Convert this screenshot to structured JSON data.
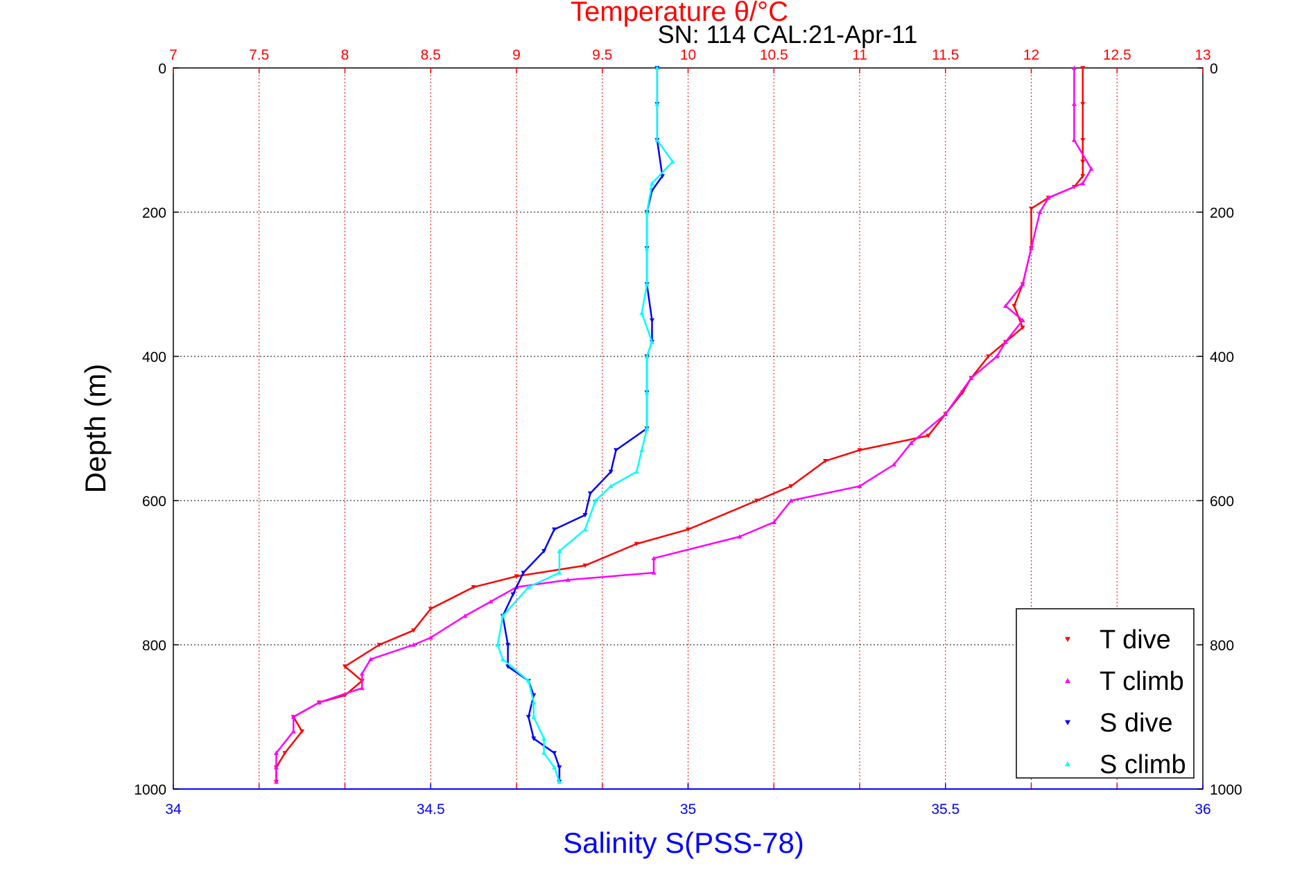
{
  "chart_data": {
    "type": "scatter",
    "title": "Temperature θ/°C",
    "subtitle": "SN: 114  CAL:21-Apr-11",
    "xlabel_bottom": "Salinity S(PSS-78)",
    "ylabel": "Depth (m)",
    "x_top": {
      "label": "Temperature θ/°C",
      "lim": [
        7,
        13
      ],
      "ticks": [
        "7",
        "7.5",
        "8",
        "8.5",
        "9",
        "9.5",
        "10",
        "10.5",
        "11",
        "11.5",
        "12",
        "12.5",
        "13"
      ]
    },
    "x_bottom": {
      "label": "Salinity S(PSS-78)",
      "lim": [
        34,
        36
      ],
      "ticks": [
        "34",
        "34.5",
        "35",
        "35.5",
        "36"
      ]
    },
    "y": {
      "lim": [
        0,
        1000
      ],
      "reversed": true,
      "ticks": [
        "0",
        "200",
        "400",
        "600",
        "800",
        "1000"
      ]
    },
    "grid": true,
    "legend_position": "bottom-right",
    "colors": {
      "T_dive": "#ff0000",
      "T_climb": "#ff00ff",
      "S_dive": "#0000ff",
      "S_climb": "#00ffff",
      "top_axis": "#ff0000",
      "bottom_axis": "#0000ff"
    },
    "series": [
      {
        "name": "T dive",
        "axis": "temperature",
        "marker": "triangle-down",
        "color": "#ff0000",
        "points": [
          [
            12.3,
            0
          ],
          [
            12.3,
            50
          ],
          [
            12.3,
            100
          ],
          [
            12.3,
            130
          ],
          [
            12.3,
            150
          ],
          [
            12.25,
            165
          ],
          [
            12.1,
            180
          ],
          [
            12.0,
            195
          ],
          [
            12.0,
            250
          ],
          [
            11.95,
            300
          ],
          [
            11.9,
            330
          ],
          [
            11.95,
            360
          ],
          [
            11.85,
            380
          ],
          [
            11.75,
            400
          ],
          [
            11.65,
            430
          ],
          [
            11.6,
            450
          ],
          [
            11.5,
            480
          ],
          [
            11.4,
            510
          ],
          [
            11.0,
            530
          ],
          [
            10.8,
            545
          ],
          [
            10.6,
            580
          ],
          [
            10.4,
            600
          ],
          [
            10.0,
            640
          ],
          [
            9.7,
            660
          ],
          [
            9.4,
            690
          ],
          [
            9.0,
            705
          ],
          [
            8.75,
            720
          ],
          [
            8.5,
            750
          ],
          [
            8.4,
            780
          ],
          [
            8.2,
            800
          ],
          [
            8.0,
            830
          ],
          [
            8.1,
            850
          ],
          [
            8.0,
            870
          ],
          [
            7.85,
            880
          ],
          [
            7.7,
            900
          ],
          [
            7.75,
            920
          ],
          [
            7.65,
            950
          ],
          [
            7.6,
            970
          ],
          [
            7.6,
            990
          ]
        ]
      },
      {
        "name": "T climb",
        "axis": "temperature",
        "marker": "triangle-up",
        "color": "#ff00ff",
        "points": [
          [
            12.25,
            0
          ],
          [
            12.25,
            50
          ],
          [
            12.25,
            100
          ],
          [
            12.35,
            140
          ],
          [
            12.3,
            160
          ],
          [
            12.1,
            180
          ],
          [
            12.05,
            200
          ],
          [
            12.0,
            250
          ],
          [
            11.95,
            300
          ],
          [
            11.85,
            330
          ],
          [
            11.95,
            350
          ],
          [
            11.85,
            380
          ],
          [
            11.8,
            400
          ],
          [
            11.65,
            430
          ],
          [
            11.5,
            480
          ],
          [
            11.3,
            520
          ],
          [
            11.2,
            550
          ],
          [
            11.0,
            580
          ],
          [
            10.6,
            600
          ],
          [
            10.5,
            630
          ],
          [
            10.3,
            650
          ],
          [
            9.8,
            680
          ],
          [
            9.8,
            700
          ],
          [
            9.3,
            710
          ],
          [
            9.0,
            720
          ],
          [
            8.85,
            740
          ],
          [
            8.7,
            760
          ],
          [
            8.5,
            790
          ],
          [
            8.4,
            800
          ],
          [
            8.15,
            820
          ],
          [
            8.1,
            840
          ],
          [
            8.1,
            860
          ],
          [
            7.85,
            880
          ],
          [
            7.7,
            900
          ],
          [
            7.7,
            920
          ],
          [
            7.6,
            950
          ],
          [
            7.6,
            970
          ],
          [
            7.6,
            990
          ]
        ]
      },
      {
        "name": "S dive",
        "axis": "salinity",
        "marker": "triangle-down",
        "color": "#0000ff",
        "points": [
          [
            34.94,
            0
          ],
          [
            34.94,
            50
          ],
          [
            34.94,
            100
          ],
          [
            34.95,
            150
          ],
          [
            34.93,
            170
          ],
          [
            34.92,
            200
          ],
          [
            34.92,
            250
          ],
          [
            34.92,
            300
          ],
          [
            34.93,
            350
          ],
          [
            34.93,
            380
          ],
          [
            34.92,
            400
          ],
          [
            34.92,
            450
          ],
          [
            34.92,
            500
          ],
          [
            34.86,
            530
          ],
          [
            34.85,
            560
          ],
          [
            34.81,
            590
          ],
          [
            34.8,
            620
          ],
          [
            34.74,
            640
          ],
          [
            34.72,
            670
          ],
          [
            34.68,
            700
          ],
          [
            34.66,
            730
          ],
          [
            34.64,
            760
          ],
          [
            34.65,
            800
          ],
          [
            34.65,
            830
          ],
          [
            34.69,
            850
          ],
          [
            34.7,
            870
          ],
          [
            34.69,
            900
          ],
          [
            34.7,
            930
          ],
          [
            34.74,
            950
          ],
          [
            34.75,
            970
          ],
          [
            34.75,
            990
          ]
        ]
      },
      {
        "name": "S climb",
        "axis": "salinity",
        "marker": "triangle-up",
        "color": "#00ffff",
        "points": [
          [
            34.94,
            0
          ],
          [
            34.94,
            50
          ],
          [
            34.94,
            100
          ],
          [
            34.97,
            130
          ],
          [
            34.93,
            160
          ],
          [
            34.92,
            200
          ],
          [
            34.92,
            250
          ],
          [
            34.92,
            300
          ],
          [
            34.91,
            340
          ],
          [
            34.93,
            380
          ],
          [
            34.92,
            400
          ],
          [
            34.92,
            450
          ],
          [
            34.92,
            500
          ],
          [
            34.91,
            530
          ],
          [
            34.9,
            560
          ],
          [
            34.85,
            580
          ],
          [
            34.82,
            600
          ],
          [
            34.8,
            640
          ],
          [
            34.75,
            670
          ],
          [
            34.75,
            700
          ],
          [
            34.69,
            720
          ],
          [
            34.64,
            760
          ],
          [
            34.63,
            800
          ],
          [
            34.64,
            820
          ],
          [
            34.69,
            850
          ],
          [
            34.7,
            880
          ],
          [
            34.7,
            900
          ],
          [
            34.72,
            930
          ],
          [
            34.72,
            950
          ],
          [
            34.74,
            970
          ],
          [
            34.75,
            990
          ]
        ]
      }
    ]
  }
}
